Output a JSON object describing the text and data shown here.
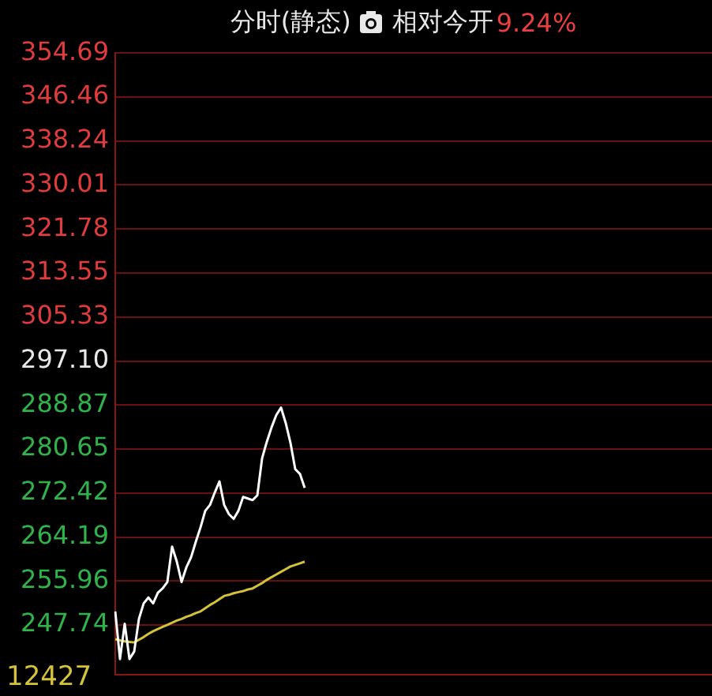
{
  "chart_data": {
    "type": "line",
    "title": "分时(静态)",
    "annotations": [
      "相对今开",
      "9.24%",
      "12427"
    ],
    "categories": [
      null,
      null,
      null,
      null,
      null,
      null,
      null,
      null,
      null,
      null,
      null,
      null,
      null,
      null,
      null,
      null,
      null,
      null,
      null,
      null,
      null,
      null,
      null,
      null,
      null,
      null,
      null,
      null,
      null,
      null,
      null,
      null,
      null,
      null,
      null,
      null,
      null,
      null,
      null,
      null,
      null,
      null,
      null,
      null,
      null,
      null,
      null,
      null,
      null,
      null,
      null,
      null,
      null,
      null,
      null,
      null,
      null,
      null,
      null,
      null,
      null,
      null,
      null,
      null,
      null,
      null,
      null,
      null,
      null,
      null,
      null,
      null,
      null,
      null,
      null,
      null,
      null,
      null,
      null,
      null,
      null,
      null,
      null,
      null,
      null,
      null,
      null,
      null,
      null,
      null,
      null,
      null,
      null,
      null,
      null,
      null,
      null,
      null,
      null,
      null,
      null,
      null,
      null,
      null,
      null,
      null,
      null,
      null,
      null,
      null,
      null,
      null,
      null,
      null,
      null,
      null,
      null,
      null,
      null,
      null,
      null,
      null,
      null,
      null,
      null,
      null,
      null
    ],
    "ylim": [
      238.5,
      354.69
    ],
    "yticks": [
      247.74,
      255.96,
      264.19,
      272.42,
      280.65,
      288.87,
      {
        "value": 297.1,
        "label": "297.10"
      },
      305.33,
      313.55,
      321.78,
      330.01,
      338.24,
      346.46,
      354.69
    ],
    "tick_labels": "y",
    "grid": "y",
    "legend": false,
    "series": [
      {
        "color": "#ffffff",
        "values": [
          250.3,
          241.4,
          248.0,
          241.4,
          242.8,
          248.9,
          251.8,
          252.9,
          251.8,
          253.8,
          254.6,
          255.8,
          262.4,
          259.6,
          255.8,
          258.5,
          260.4,
          263.3,
          266.0,
          269.1,
          270.2,
          272.5,
          274.6,
          270.2,
          268.5,
          267.6,
          269.1,
          271.7,
          271.4,
          271.1,
          272.0,
          278.9,
          282.0,
          284.7,
          287.0,
          288.4,
          285.5,
          281.8,
          276.9,
          276.0,
          273.4,
          null,
          null,
          null,
          null,
          null,
          null,
          null,
          null,
          null,
          null,
          null,
          null,
          null,
          null,
          null,
          null,
          null,
          null,
          null,
          null,
          null,
          null,
          null,
          null,
          null,
          null,
          null,
          null,
          null,
          null,
          null,
          null,
          null,
          null,
          null,
          null,
          null,
          null,
          null,
          null,
          null,
          null,
          null,
          null,
          null,
          null,
          null,
          null,
          null,
          null,
          null,
          null,
          null,
          null,
          null,
          null,
          null,
          null,
          null,
          null,
          null,
          null,
          null,
          null,
          null,
          null,
          null,
          null,
          null,
          null,
          null,
          null,
          null,
          null,
          null,
          null,
          null,
          null,
          null,
          null,
          null,
          null,
          null,
          null,
          null,
          null
        ]
      },
      {
        "color": "#d4c23a",
        "values": [
          245.1,
          244.9,
          244.7,
          244.6,
          244.5,
          245.0,
          245.5,
          246.1,
          246.6,
          247.0,
          247.4,
          247.8,
          248.2,
          248.6,
          248.9,
          249.3,
          249.6,
          250.0,
          250.3,
          250.9,
          251.5,
          252.0,
          252.6,
          253.2,
          253.4,
          253.7,
          253.9,
          254.1,
          254.4,
          254.6,
          255.1,
          255.6,
          256.2,
          256.7,
          257.2,
          257.7,
          258.2,
          258.7,
          259.0,
          259.3,
          259.6,
          null,
          null,
          null,
          null,
          null,
          null,
          null,
          null,
          null,
          null,
          null,
          null,
          null,
          null,
          null,
          null,
          null,
          null,
          null,
          null,
          null,
          null,
          null,
          null,
          null,
          null,
          null,
          null,
          null,
          null,
          null,
          null,
          null,
          null,
          null,
          null,
          null,
          null,
          null,
          null,
          null,
          null,
          null,
          null,
          null,
          null,
          null,
          null,
          null,
          null,
          null,
          null,
          null,
          null,
          null,
          null,
          null,
          null,
          null,
          null,
          null,
          null,
          null,
          null,
          null,
          null,
          null,
          null,
          null,
          null,
          null,
          null,
          null,
          null,
          null,
          null,
          null,
          null,
          null,
          null,
          null,
          null,
          null,
          null,
          null,
          null
        ]
      }
    ]
  }
}
